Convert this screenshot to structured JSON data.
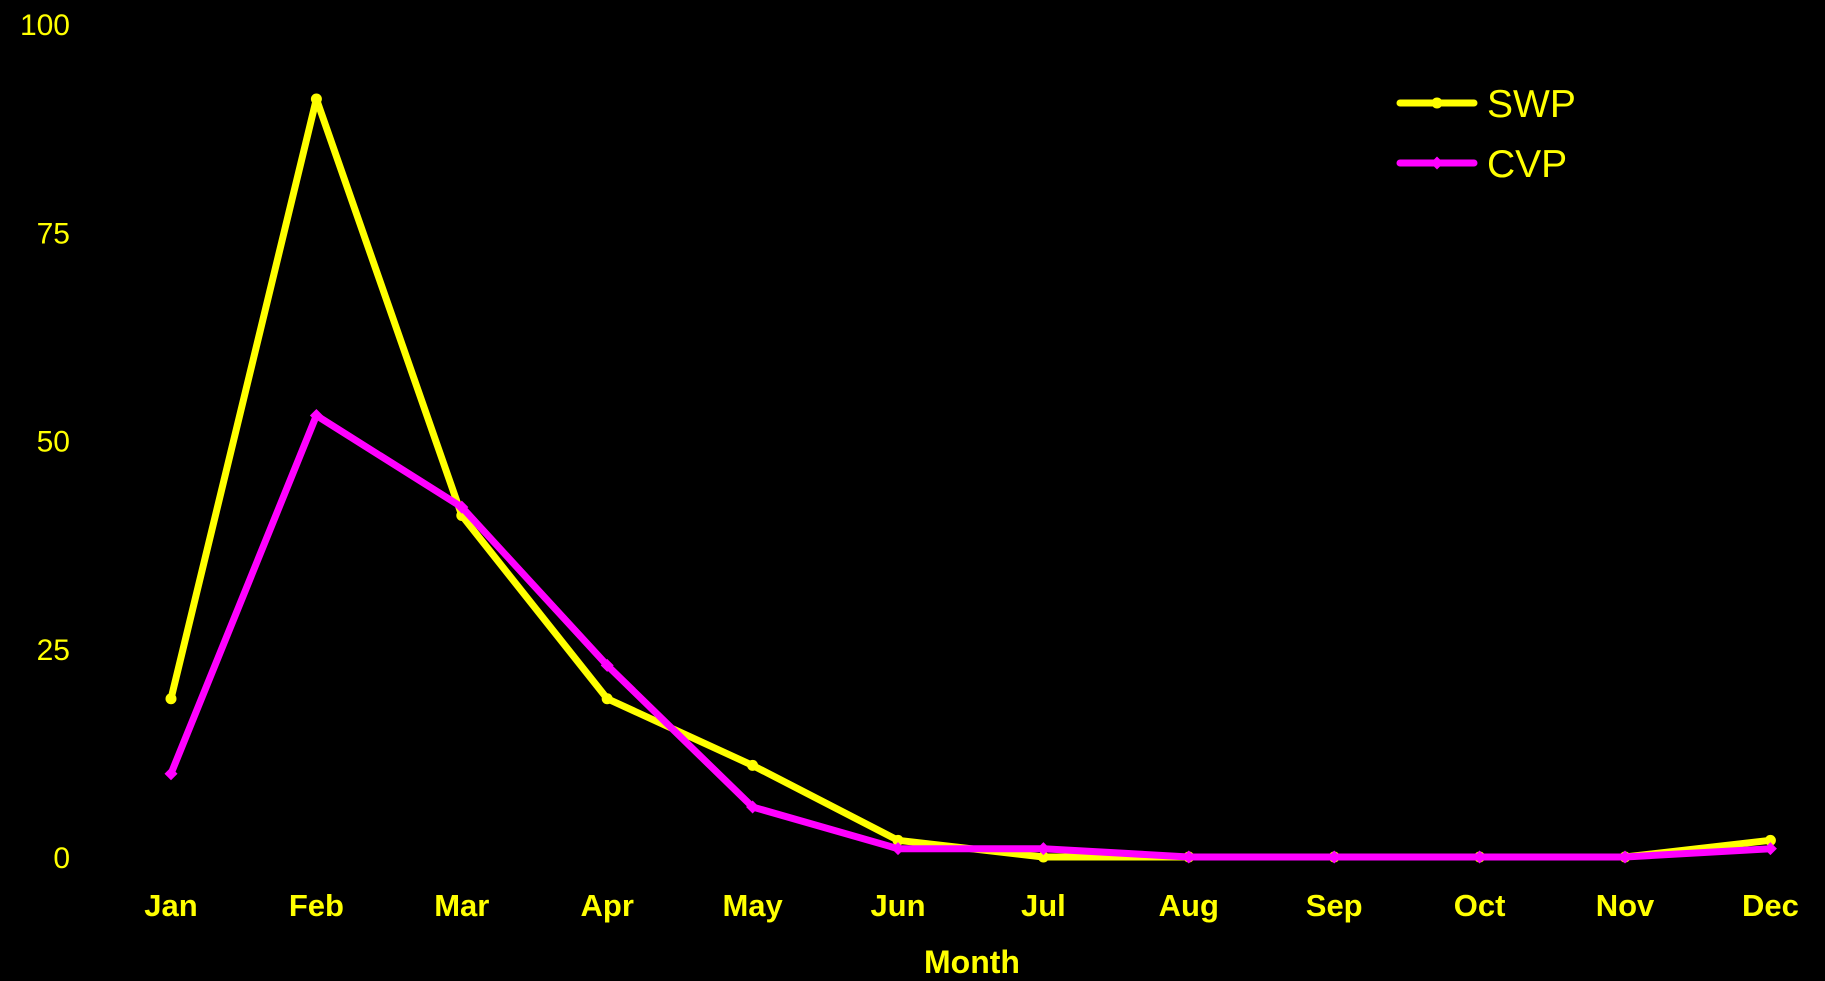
{
  "chart_data": {
    "type": "line",
    "title": "",
    "xlabel": "Month",
    "ylabel": "",
    "categories": [
      "Jan",
      "Feb",
      "Mar",
      "Apr",
      "May",
      "Jun",
      "Jul",
      "Aug",
      "Sep",
      "Oct",
      "Nov",
      "Dec"
    ],
    "ylim": [
      0,
      100
    ],
    "yticks": [
      "0",
      "25",
      "50",
      "75",
      "100"
    ],
    "grid": false,
    "legend_position": "top-right",
    "text_color": "#ffff00",
    "background": "#000000",
    "series": [
      {
        "name": "SWP",
        "color": "#ffff00",
        "values": [
          19,
          91,
          41,
          19,
          11,
          2,
          0,
          0,
          0,
          0,
          0,
          2
        ]
      },
      {
        "name": "CVP",
        "color": "#ff00ff",
        "values": [
          10,
          53,
          42,
          23,
          6,
          1,
          1,
          0,
          0,
          0,
          0,
          1
        ]
      }
    ]
  }
}
